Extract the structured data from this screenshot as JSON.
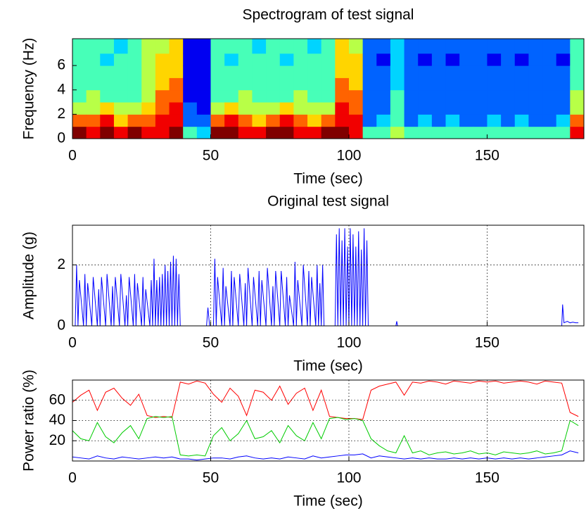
{
  "chart_data": [
    {
      "type": "heatmap",
      "title": "Spectrogram of test signal",
      "x_label": "Time (sec)",
      "y_label": "Frequency (Hz)",
      "colormap": "jet",
      "clim": [
        0,
        9
      ],
      "x": [
        0,
        5,
        10,
        15,
        20,
        25,
        30,
        35,
        40,
        45,
        50,
        55,
        60,
        65,
        70,
        75,
        80,
        85,
        90,
        95,
        100,
        105,
        110,
        115,
        120,
        125,
        130,
        135,
        140,
        145,
        150,
        155,
        160,
        165,
        170,
        175,
        180
      ],
      "y": [
        0,
        1,
        2,
        3,
        4,
        5,
        6,
        7
      ],
      "values": [
        [
          9,
          7,
          5,
          4,
          4,
          4,
          4,
          4
        ],
        [
          8,
          7,
          5,
          5,
          4,
          4,
          4,
          4
        ],
        [
          9,
          8,
          6,
          4,
          4,
          4,
          3,
          4
        ],
        [
          8,
          6,
          5,
          4,
          4,
          4,
          4,
          3
        ],
        [
          9,
          7,
          5,
          4,
          4,
          4,
          4,
          4
        ],
        [
          8,
          7,
          6,
          5,
          5,
          5,
          5,
          5
        ],
        [
          8,
          8,
          7,
          7,
          6,
          6,
          6,
          5
        ],
        [
          9,
          8,
          8,
          7,
          7,
          6,
          6,
          6
        ],
        [
          4,
          2,
          2,
          1,
          1,
          1,
          1,
          1
        ],
        [
          3,
          2,
          1,
          1,
          1,
          1,
          1,
          1
        ],
        [
          9,
          7,
          5,
          4,
          4,
          4,
          4,
          4
        ],
        [
          9,
          8,
          6,
          4,
          4,
          4,
          3,
          4
        ],
        [
          8,
          7,
          5,
          5,
          4,
          4,
          4,
          4
        ],
        [
          8,
          6,
          5,
          4,
          4,
          4,
          4,
          3
        ],
        [
          9,
          7,
          5,
          4,
          4,
          4,
          4,
          4
        ],
        [
          9,
          8,
          6,
          4,
          4,
          4,
          3,
          4
        ],
        [
          8,
          7,
          5,
          5,
          4,
          4,
          4,
          4
        ],
        [
          8,
          6,
          5,
          4,
          4,
          4,
          4,
          3
        ],
        [
          9,
          7,
          5,
          4,
          4,
          4,
          4,
          4
        ],
        [
          9,
          8,
          8,
          7,
          7,
          6,
          6,
          6
        ],
        [
          8,
          8,
          7,
          7,
          6,
          6,
          6,
          5
        ],
        [
          4,
          2,
          2,
          2,
          2,
          2,
          2,
          2
        ],
        [
          4,
          3,
          2,
          2,
          2,
          2,
          1,
          2
        ],
        [
          5,
          4,
          4,
          4,
          3,
          3,
          3,
          3
        ],
        [
          4,
          2,
          2,
          2,
          2,
          2,
          2,
          2
        ],
        [
          4,
          3,
          2,
          2,
          2,
          2,
          1,
          2
        ],
        [
          4,
          2,
          2,
          2,
          2,
          2,
          2,
          2
        ],
        [
          4,
          3,
          2,
          2,
          2,
          2,
          1,
          2
        ],
        [
          4,
          2,
          2,
          2,
          2,
          2,
          2,
          2
        ],
        [
          4,
          2,
          2,
          2,
          2,
          2,
          2,
          2
        ],
        [
          4,
          3,
          2,
          2,
          2,
          2,
          1,
          2
        ],
        [
          4,
          2,
          2,
          2,
          2,
          2,
          2,
          2
        ],
        [
          4,
          3,
          2,
          2,
          2,
          2,
          1,
          2
        ],
        [
          4,
          2,
          2,
          2,
          2,
          2,
          2,
          2
        ],
        [
          4,
          2,
          2,
          2,
          2,
          2,
          2,
          2
        ],
        [
          4,
          3,
          2,
          2,
          2,
          2,
          1,
          2
        ],
        [
          8,
          7,
          5,
          5,
          4,
          4,
          4,
          4
        ]
      ],
      "xlim": [
        0,
        185
      ],
      "xticks": [
        0,
        50,
        100,
        150
      ],
      "ylim": [
        0,
        8.2
      ],
      "yticks": [
        0,
        2,
        4,
        6
      ],
      "grid": false
    },
    {
      "type": "line",
      "title": "Original test signal",
      "x_label": "Time (sec)",
      "y_label": "Amplitude (g)",
      "x": [
        0,
        1,
        1.5,
        2,
        2.5,
        4,
        4.5,
        5,
        5.5,
        7,
        7.5,
        9,
        9.5,
        10,
        10.5,
        12,
        12.5,
        14,
        14.5,
        15,
        15.5,
        17,
        17.5,
        19,
        19.5,
        20,
        20.5,
        22,
        22.5,
        23,
        23.5,
        25,
        25.5,
        26,
        26.5,
        28,
        28.5,
        29,
        29.5,
        30,
        30.5,
        31,
        31.5,
        32,
        32.5,
        33,
        33.5,
        34,
        34.5,
        35,
        35.5,
        36,
        36.5,
        37,
        37.5,
        38,
        38.5,
        39,
        48.5,
        49,
        49.6,
        51,
        51.5,
        52,
        52.5,
        54,
        54.5,
        55,
        55.5,
        57,
        57.5,
        58,
        58.5,
        60,
        60.5,
        62,
        62.5,
        63,
        63.5,
        65,
        65.5,
        67,
        67.5,
        68,
        68.5,
        70,
        70.5,
        72,
        72.5,
        73,
        73.5,
        75,
        75.5,
        77,
        77.5,
        78,
        78.5,
        80,
        80.5,
        81,
        81.5,
        83,
        83.5,
        85,
        85.5,
        86,
        86.5,
        88,
        88.5,
        89,
        89.5,
        90,
        90.5,
        91,
        95,
        95.5,
        96,
        96.5,
        97,
        97.5,
        98,
        98.5,
        99,
        99.5,
        100,
        100.5,
        101,
        101.5,
        102,
        102.5,
        103,
        103.5,
        104,
        104.5,
        105,
        105.5,
        106,
        106.5,
        107,
        117,
        117.3,
        117.6,
        177,
        177.3,
        177.8,
        179,
        180,
        181,
        182,
        183
      ],
      "series": [
        {
          "color": "#0000ff",
          "values": [
            0,
            0,
            2.0,
            0,
            1.5,
            0,
            1.7,
            0,
            1.4,
            0,
            1.6,
            0,
            1.2,
            0,
            1.6,
            0,
            1.7,
            0,
            1.3,
            0,
            1.6,
            0,
            1.7,
            0,
            1.0,
            0,
            1.6,
            0,
            1.7,
            0,
            1.4,
            0,
            1.6,
            0,
            1.2,
            0,
            1.5,
            0,
            2.2,
            0,
            1.5,
            0,
            1.6,
            0,
            1.7,
            0,
            2.0,
            0,
            1.8,
            0,
            2.1,
            0,
            2.3,
            0,
            2.2,
            0,
            1.7,
            0,
            0,
            0.6,
            0,
            0,
            2.2,
            0,
            1.6,
            0,
            1.9,
            0,
            1.3,
            0,
            1.8,
            0,
            1.6,
            0,
            1.7,
            0,
            1.4,
            0,
            1.9,
            0,
            1.6,
            0,
            1.8,
            0,
            1.5,
            0,
            1.9,
            0,
            1.3,
            0,
            1.8,
            0,
            1.8,
            0,
            1.6,
            0,
            1.0,
            0,
            2.1,
            0,
            1.5,
            0,
            2.0,
            0,
            1.8,
            0,
            1.6,
            0,
            2.0,
            0,
            1.4,
            0,
            2.0,
            0,
            0,
            3.0,
            0,
            3.2,
            0,
            2.8,
            0,
            3.2,
            0,
            2.6,
            0,
            3.2,
            0,
            3.0,
            0,
            2.6,
            0,
            3.1,
            0,
            2.5,
            0,
            3.2,
            0,
            2.8,
            0,
            0,
            0.15,
            0,
            0,
            0.7,
            0.1,
            0.15,
            0.1,
            0.12,
            0.1,
            0.1
          ]
        }
      ],
      "xlim": [
        0,
        185
      ],
      "xticks": [
        0,
        50,
        100,
        150
      ],
      "ylim": [
        0,
        3.3
      ],
      "yticks": [
        0,
        2
      ],
      "grid": true
    },
    {
      "type": "line",
      "x_label": "Time (sec)",
      "y_label": "Power ratio (%)",
      "x": [
        0,
        3,
        6,
        9,
        12,
        15,
        18,
        21,
        24,
        27,
        30,
        33,
        36,
        39,
        42,
        45,
        48,
        51,
        54,
        57,
        60,
        63,
        66,
        69,
        72,
        75,
        78,
        81,
        84,
        87,
        90,
        93,
        96,
        99,
        102,
        105,
        108,
        111,
        114,
        117,
        120,
        123,
        126,
        129,
        132,
        135,
        138,
        141,
        144,
        147,
        150,
        153,
        156,
        159,
        162,
        165,
        168,
        171,
        174,
        177,
        180,
        183
      ],
      "series": [
        {
          "color": "#ff0000",
          "values": [
            58,
            65,
            70,
            50,
            68,
            72,
            62,
            55,
            66,
            45,
            43,
            44,
            43,
            78,
            76,
            79,
            77,
            66,
            58,
            72,
            64,
            45,
            70,
            68,
            60,
            74,
            56,
            67,
            72,
            50,
            70,
            44,
            43,
            42,
            42,
            41,
            70,
            74,
            76,
            78,
            65,
            78,
            77,
            79,
            78,
            76,
            79,
            78,
            77,
            79,
            78,
            79,
            77,
            78,
            79,
            78,
            76,
            79,
            78,
            77,
            48,
            44
          ]
        },
        {
          "color": "#00cc00",
          "values": [
            30,
            22,
            20,
            38,
            24,
            18,
            28,
            35,
            22,
            42,
            44,
            43,
            44,
            6,
            5,
            6,
            5,
            25,
            33,
            20,
            27,
            40,
            22,
            24,
            30,
            18,
            35,
            25,
            20,
            38,
            22,
            42,
            43,
            41,
            42,
            40,
            22,
            15,
            10,
            8,
            25,
            8,
            10,
            6,
            8,
            9,
            7,
            8,
            10,
            7,
            8,
            6,
            9,
            8,
            7,
            8,
            10,
            7,
            8,
            10,
            40,
            35
          ]
        },
        {
          "color": "#0000ff",
          "values": [
            4,
            3,
            2,
            5,
            3,
            2,
            4,
            3,
            2,
            3,
            4,
            3,
            4,
            2,
            2,
            1,
            2,
            3,
            3,
            2,
            4,
            5,
            3,
            2,
            3,
            2,
            4,
            3,
            2,
            5,
            3,
            4,
            5,
            6,
            6,
            7,
            3,
            5,
            4,
            3,
            2,
            3,
            2,
            3,
            2,
            2,
            3,
            2,
            3,
            2,
            3,
            2,
            3,
            2,
            3,
            2,
            3,
            4,
            5,
            6,
            10,
            8
          ]
        }
      ],
      "xlim": [
        0,
        185
      ],
      "xticks": [
        0,
        50,
        100,
        150
      ],
      "ylim": [
        0,
        80
      ],
      "yticks": [
        20,
        40,
        60
      ],
      "grid": true
    }
  ]
}
